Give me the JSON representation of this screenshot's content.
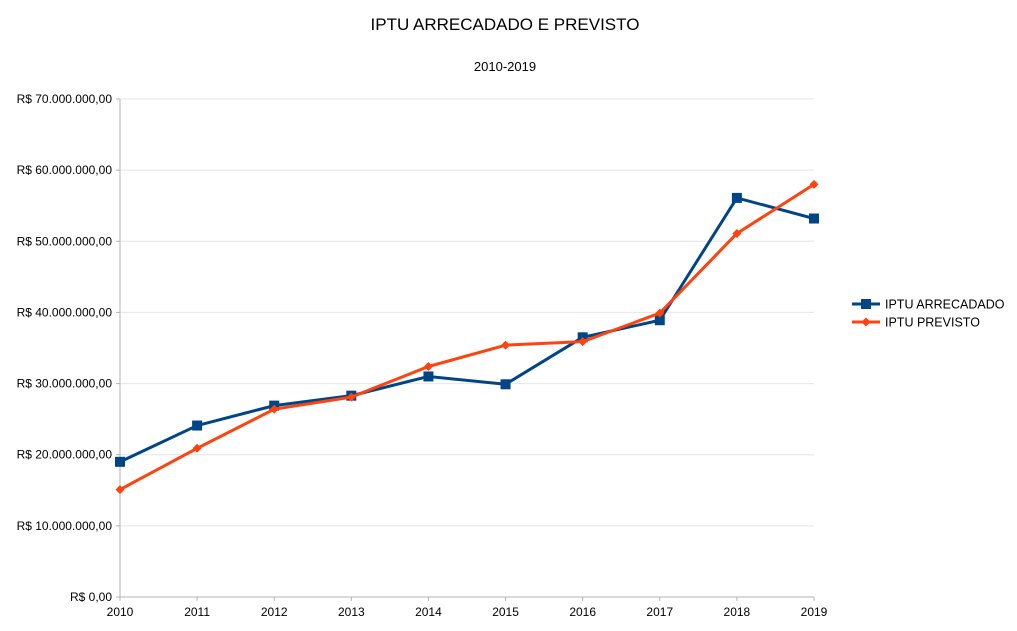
{
  "chart_data": {
    "type": "line",
    "title": "IPTU ARRECADADO E PREVISTO",
    "subtitle": "2010-2019",
    "xlabel": "",
    "ylabel": "",
    "categories": [
      "2010",
      "2011",
      "2012",
      "2013",
      "2014",
      "2015",
      "2016",
      "2017",
      "2018",
      "2019"
    ],
    "ylim": [
      0,
      70000000
    ],
    "y_ticks": [
      0,
      10000000,
      20000000,
      30000000,
      40000000,
      50000000,
      60000000,
      70000000
    ],
    "y_tick_labels": [
      "R$ 0,00",
      "R$ 10.000.000,00",
      "R$ 20.000.000,00",
      "R$ 30.000.000,00",
      "R$ 40.000.000,00",
      "R$ 50.000.000,00",
      "R$ 60.000.000,00",
      "R$ 70.000.000,00"
    ],
    "grid": true,
    "legend_position": "right",
    "series": [
      {
        "name": "IPTU ARRECADADO",
        "color": "#004586",
        "marker": "square",
        "values": [
          19000000,
          24100000,
          26900000,
          28300000,
          31000000,
          29900000,
          36500000,
          38900000,
          56100000,
          53200000
        ]
      },
      {
        "name": "IPTU PREVISTO",
        "color": "#ff420e",
        "marker": "diamond",
        "values": [
          15100000,
          20900000,
          26400000,
          28100000,
          32400000,
          35400000,
          35900000,
          39900000,
          51100000,
          58000000
        ]
      }
    ]
  }
}
